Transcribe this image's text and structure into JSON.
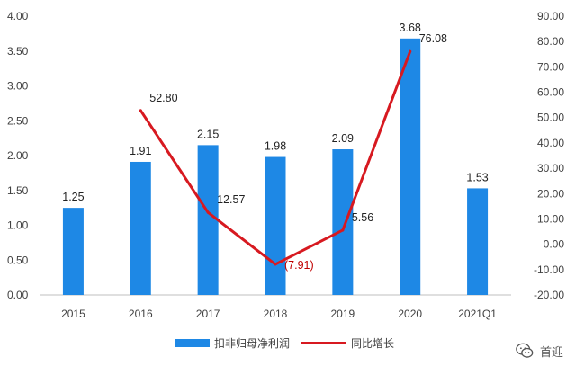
{
  "chart_data": {
    "type": "bar+line",
    "categories": [
      "2015",
      "2016",
      "2017",
      "2018",
      "2019",
      "2020",
      "2021Q1"
    ],
    "series": [
      {
        "name": "扣非归母净利润",
        "type": "bar",
        "axis": "left",
        "color": "#1e88e5",
        "values": [
          1.25,
          1.91,
          2.15,
          1.98,
          2.09,
          3.68,
          1.53
        ],
        "labels": [
          "1.25",
          "1.91",
          "2.15",
          "1.98",
          "2.09",
          "3.68",
          "1.53"
        ]
      },
      {
        "name": "同比增长",
        "type": "line",
        "axis": "right",
        "color": "#d71920",
        "values": [
          null,
          52.8,
          12.57,
          -7.91,
          5.56,
          76.08,
          null
        ],
        "labels": [
          null,
          "52.80",
          "12.57",
          "(7.91)",
          "5.56",
          "76.08",
          null
        ]
      }
    ],
    "y_left": {
      "min": 0,
      "max": 4,
      "step": 0.5,
      "ticks": [
        "0.00",
        "0.50",
        "1.00",
        "1.50",
        "2.00",
        "2.50",
        "3.00",
        "3.50",
        "4.00"
      ]
    },
    "y_right": {
      "min": -20,
      "max": 90,
      "step": 10,
      "ticks": [
        "-20.00",
        "-10.00",
        "0.00",
        "10.00",
        "20.00",
        "30.00",
        "40.00",
        "50.00",
        "60.00",
        "70.00",
        "80.00",
        "90.00"
      ]
    },
    "grid": false,
    "legend_position": "bottom"
  },
  "watermark": {
    "text": "首迎",
    "icon": "wechat-icon"
  }
}
